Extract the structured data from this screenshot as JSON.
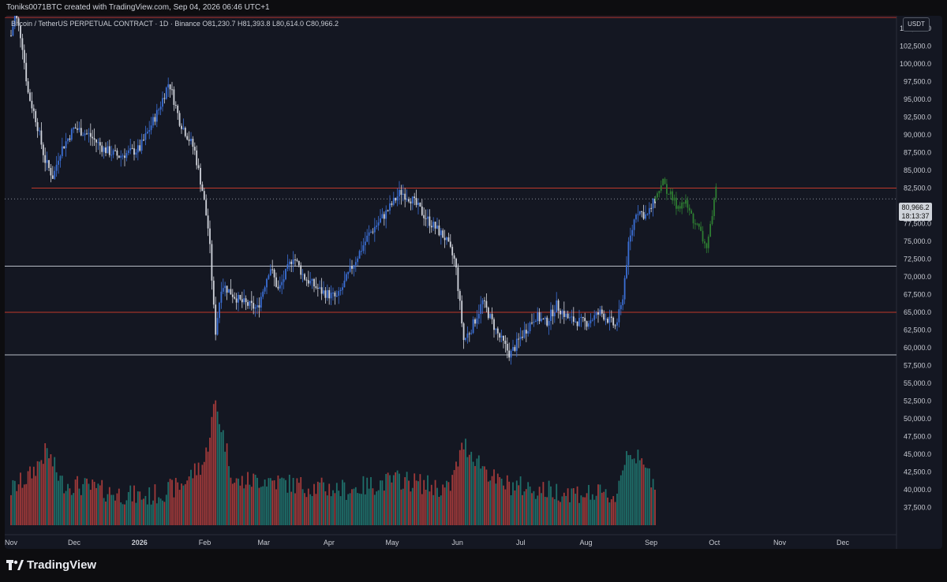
{
  "header": {
    "credit": "Toniks0071BTC created with TradingView.com, Sep 04, 2026 06:46 UTC+1"
  },
  "symbol_info": "Bitcoin / TetherUS PERPETUAL CONTRACT · 1D · Binance  O81,230.7  H81,393.8  L80,614.0  C80,966.2",
  "currency": "USDT",
  "last_price": "80,966.2",
  "countdown": "18:13:37",
  "footer": {
    "brand": "TradingView"
  },
  "colors": {
    "background": "#141722",
    "up_candle": "#3b6fd6",
    "down_candle": "#d1d4dc",
    "projection": "#2e7d32",
    "red_level": "#c0392b",
    "white_level": "#b7bcc6",
    "volume_up": "#1f6f6a",
    "volume_down": "#a03a3a"
  },
  "chart_data": {
    "type": "candlestick",
    "price_axis": {
      "range": [
        35000,
        107000
      ],
      "ticks": [
        "105,000.0",
        "102,500.0",
        "100,000.0",
        "97,500.0",
        "95,000.0",
        "92,500.0",
        "90,000.0",
        "87,500.0",
        "85,000.0",
        "82,500.0",
        "77,500.0",
        "75,000.0",
        "72,500.0",
        "70,000.0",
        "67,500.0",
        "65,000.0",
        "62,500.0",
        "60,000.0",
        "57,500.0",
        "55,000.0",
        "52,500.0",
        "50,000.0",
        "47,500.0",
        "45,000.0",
        "42,500.0",
        "40,000.0",
        "37,500.0"
      ]
    },
    "time_axis": {
      "labels": [
        "Nov",
        "Dec",
        "2026",
        "Feb",
        "Mar",
        "Apr",
        "May",
        "Jun",
        "Jul",
        "Aug",
        "Sep",
        "Oct",
        "Nov",
        "Dec"
      ],
      "bold_labels": [
        "2026"
      ]
    },
    "horizontal_levels": [
      {
        "price": 106500,
        "color": "red"
      },
      {
        "price": 82500,
        "color": "red"
      },
      {
        "price": 71500,
        "color": "white"
      },
      {
        "price": 65000,
        "color": "red"
      },
      {
        "price": 59000,
        "color": "white"
      }
    ],
    "current_price": 80966.2,
    "price_path": [
      {
        "date": "2025-11-01",
        "price": 104000
      },
      {
        "date": "2025-11-03",
        "price": 107000
      },
      {
        "date": "2025-11-06",
        "price": 103500
      },
      {
        "date": "2025-11-09",
        "price": 96000
      },
      {
        "date": "2025-11-13",
        "price": 92000
      },
      {
        "date": "2025-11-17",
        "price": 86500
      },
      {
        "date": "2025-11-21",
        "price": 84000
      },
      {
        "date": "2025-11-24",
        "price": 87500
      },
      {
        "date": "2025-12-01",
        "price": 91000
      },
      {
        "date": "2025-12-08",
        "price": 90000
      },
      {
        "date": "2025-12-15",
        "price": 88000
      },
      {
        "date": "2025-12-22",
        "price": 87000
      },
      {
        "date": "2026-01-01",
        "price": 88000
      },
      {
        "date": "2026-01-10",
        "price": 93500
      },
      {
        "date": "2026-01-15",
        "price": 97500
      },
      {
        "date": "2026-01-20",
        "price": 92000
      },
      {
        "date": "2026-01-27",
        "price": 88000
      },
      {
        "date": "2026-01-31",
        "price": 82000
      },
      {
        "date": "2026-02-03",
        "price": 76000
      },
      {
        "date": "2026-02-06",
        "price": 62000
      },
      {
        "date": "2026-02-09",
        "price": 69000
      },
      {
        "date": "2026-02-18",
        "price": 66500
      },
      {
        "date": "2026-02-26",
        "price": 65500
      },
      {
        "date": "2026-03-04",
        "price": 71500
      },
      {
        "date": "2026-03-08",
        "price": 68000
      },
      {
        "date": "2026-03-15",
        "price": 73000
      },
      {
        "date": "2026-03-20",
        "price": 70000
      },
      {
        "date": "2026-03-28",
        "price": 68000
      },
      {
        "date": "2026-04-05",
        "price": 67000
      },
      {
        "date": "2026-04-12",
        "price": 71500
      },
      {
        "date": "2026-04-20",
        "price": 76000
      },
      {
        "date": "2026-04-28",
        "price": 79000
      },
      {
        "date": "2026-05-05",
        "price": 82000
      },
      {
        "date": "2026-05-10",
        "price": 81000
      },
      {
        "date": "2026-05-18",
        "price": 78000
      },
      {
        "date": "2026-05-26",
        "price": 75500
      },
      {
        "date": "2026-05-31",
        "price": 72000
      },
      {
        "date": "2026-06-04",
        "price": 61000
      },
      {
        "date": "2026-06-08",
        "price": 63000
      },
      {
        "date": "2026-06-13",
        "price": 66500
      },
      {
        "date": "2026-06-20",
        "price": 62000
      },
      {
        "date": "2026-06-26",
        "price": 59000
      },
      {
        "date": "2026-07-01",
        "price": 61500
      },
      {
        "date": "2026-07-08",
        "price": 64500
      },
      {
        "date": "2026-07-13",
        "price": 63500
      },
      {
        "date": "2026-07-18",
        "price": 66000
      },
      {
        "date": "2026-07-24",
        "price": 64000
      },
      {
        "date": "2026-08-01",
        "price": 63500
      },
      {
        "date": "2026-08-08",
        "price": 65000
      },
      {
        "date": "2026-08-15",
        "price": 63000
      },
      {
        "date": "2026-08-18",
        "price": 66000
      },
      {
        "date": "2026-08-21",
        "price": 74000
      },
      {
        "date": "2026-08-25",
        "price": 79500
      },
      {
        "date": "2026-08-30",
        "price": 78500
      },
      {
        "date": "2026-09-03",
        "price": 81000
      }
    ],
    "projection_path": [
      {
        "date": "2026-09-03",
        "price": 81000
      },
      {
        "date": "2026-09-06",
        "price": 83500
      },
      {
        "date": "2026-09-09",
        "price": 82000
      },
      {
        "date": "2026-09-13",
        "price": 80000
      },
      {
        "date": "2026-09-17",
        "price": 80500
      },
      {
        "date": "2026-09-21",
        "price": 78000
      },
      {
        "date": "2026-09-24",
        "price": 76500
      },
      {
        "date": "2026-09-27",
        "price": 74000
      },
      {
        "date": "2026-09-30",
        "price": 78000
      },
      {
        "date": "2026-10-02",
        "price": 84000
      }
    ],
    "volume_profile": [
      {
        "date": "2025-11-01",
        "volume": 40000
      },
      {
        "date": "2025-11-10",
        "volume": 42000
      },
      {
        "date": "2025-11-18",
        "volume": 45500
      },
      {
        "date": "2025-11-25",
        "volume": 41000
      },
      {
        "date": "2025-12-05",
        "volume": 40500
      },
      {
        "date": "2025-12-20",
        "volume": 39500
      },
      {
        "date": "2026-01-05",
        "volume": 39000
      },
      {
        "date": "2026-01-20",
        "volume": 40500
      },
      {
        "date": "2026-02-01",
        "volume": 44000
      },
      {
        "date": "2026-02-06",
        "volume": 52500
      },
      {
        "date": "2026-02-15",
        "volume": 41000
      },
      {
        "date": "2026-03-01",
        "volume": 41500
      },
      {
        "date": "2026-03-20",
        "volume": 40500
      },
      {
        "date": "2026-04-10",
        "volume": 40000
      },
      {
        "date": "2026-05-05",
        "volume": 41500
      },
      {
        "date": "2026-05-28",
        "volume": 40000
      },
      {
        "date": "2026-06-04",
        "volume": 46500
      },
      {
        "date": "2026-06-20",
        "volume": 41000
      },
      {
        "date": "2026-07-10",
        "volume": 40000
      },
      {
        "date": "2026-08-01",
        "volume": 39500
      },
      {
        "date": "2026-08-15",
        "volume": 39000
      },
      {
        "date": "2026-08-21",
        "volume": 46000
      },
      {
        "date": "2026-09-03",
        "volume": 41000
      }
    ]
  }
}
